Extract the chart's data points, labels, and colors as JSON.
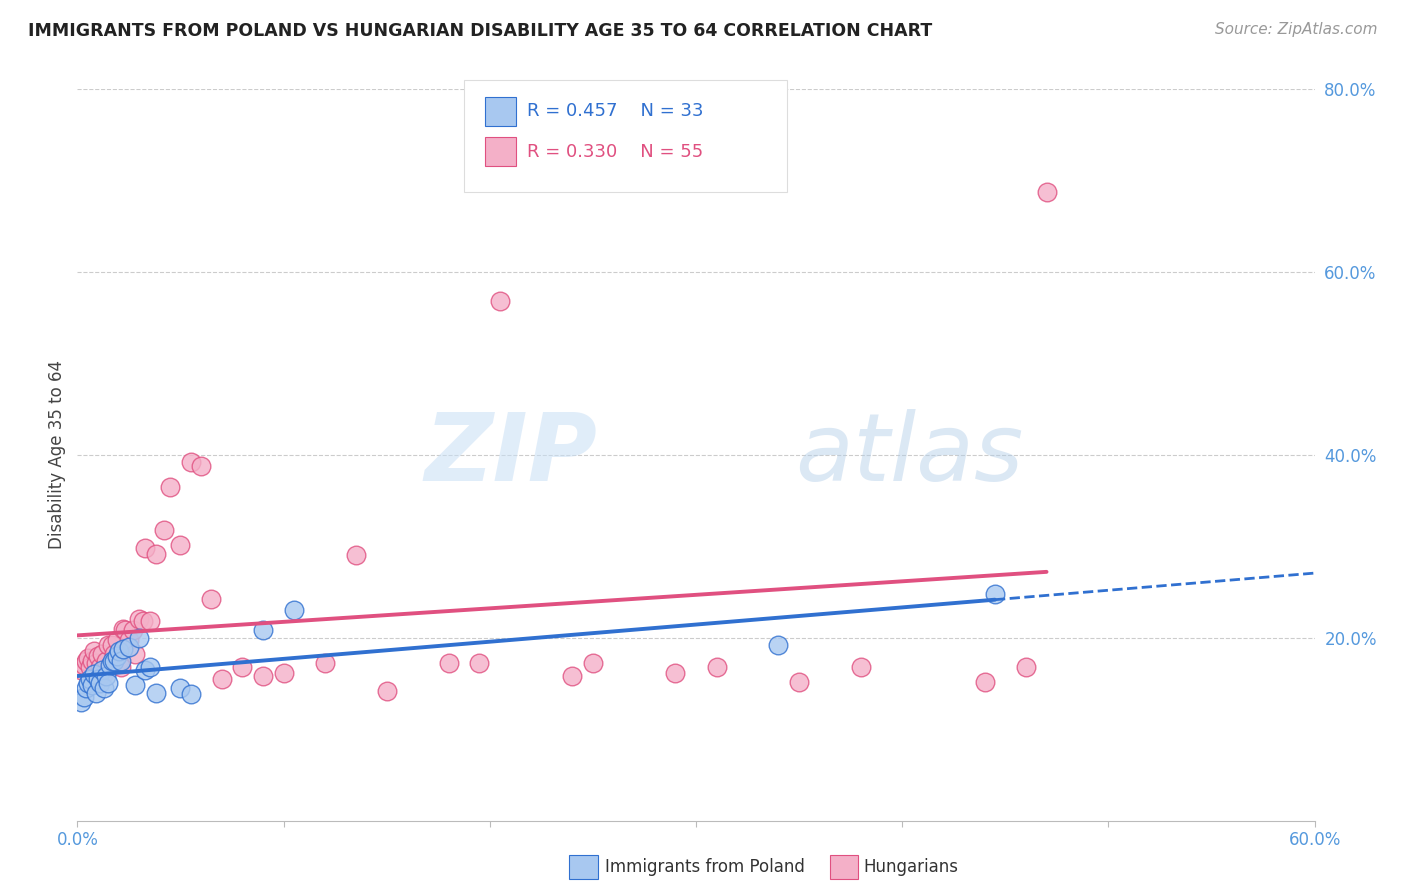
{
  "title": "IMMIGRANTS FROM POLAND VS HUNGARIAN DISABILITY AGE 35 TO 64 CORRELATION CHART",
  "source": "Source: ZipAtlas.com",
  "ylabel": "Disability Age 35 to 64",
  "xlim": [
    0.0,
    0.6
  ],
  "ylim": [
    0.0,
    0.8
  ],
  "poland_R": 0.457,
  "poland_N": 33,
  "hungary_R": 0.33,
  "hungary_N": 55,
  "poland_color": "#a8c8f0",
  "hungary_color": "#f4b0c8",
  "poland_line_color": "#3070d0",
  "hungary_line_color": "#e05080",
  "background_color": "#ffffff",
  "grid_color": "#cccccc",
  "poland_x": [
    0.002,
    0.003,
    0.004,
    0.005,
    0.006,
    0.007,
    0.008,
    0.009,
    0.01,
    0.011,
    0.012,
    0.013,
    0.014,
    0.015,
    0.016,
    0.017,
    0.018,
    0.019,
    0.02,
    0.021,
    0.022,
    0.025,
    0.028,
    0.03,
    0.033,
    0.035,
    0.038,
    0.05,
    0.055,
    0.09,
    0.105,
    0.34,
    0.445
  ],
  "poland_y": [
    0.13,
    0.135,
    0.145,
    0.15,
    0.155,
    0.148,
    0.16,
    0.14,
    0.155,
    0.15,
    0.165,
    0.145,
    0.158,
    0.15,
    0.17,
    0.175,
    0.175,
    0.18,
    0.185,
    0.175,
    0.188,
    0.19,
    0.148,
    0.2,
    0.165,
    0.168,
    0.14,
    0.145,
    0.138,
    0.208,
    0.23,
    0.192,
    0.248
  ],
  "hungary_x": [
    0.002,
    0.003,
    0.004,
    0.005,
    0.006,
    0.007,
    0.008,
    0.009,
    0.01,
    0.011,
    0.012,
    0.013,
    0.014,
    0.015,
    0.016,
    0.017,
    0.018,
    0.019,
    0.02,
    0.021,
    0.022,
    0.023,
    0.025,
    0.027,
    0.028,
    0.03,
    0.032,
    0.033,
    0.035,
    0.038,
    0.042,
    0.045,
    0.05,
    0.055,
    0.06,
    0.065,
    0.07,
    0.08,
    0.09,
    0.1,
    0.12,
    0.135,
    0.15,
    0.18,
    0.195,
    0.205,
    0.24,
    0.25,
    0.29,
    0.31,
    0.35,
    0.38,
    0.44,
    0.46,
    0.47
  ],
  "hungary_y": [
    0.165,
    0.17,
    0.175,
    0.178,
    0.168,
    0.175,
    0.185,
    0.172,
    0.18,
    0.168,
    0.182,
    0.162,
    0.175,
    0.192,
    0.168,
    0.192,
    0.182,
    0.198,
    0.175,
    0.168,
    0.21,
    0.208,
    0.198,
    0.208,
    0.182,
    0.22,
    0.218,
    0.298,
    0.218,
    0.292,
    0.318,
    0.365,
    0.302,
    0.392,
    0.388,
    0.242,
    0.155,
    0.168,
    0.158,
    0.162,
    0.172,
    0.29,
    0.142,
    0.172,
    0.172,
    0.568,
    0.158,
    0.172,
    0.162,
    0.168,
    0.152,
    0.168,
    0.152,
    0.168,
    0.688
  ]
}
